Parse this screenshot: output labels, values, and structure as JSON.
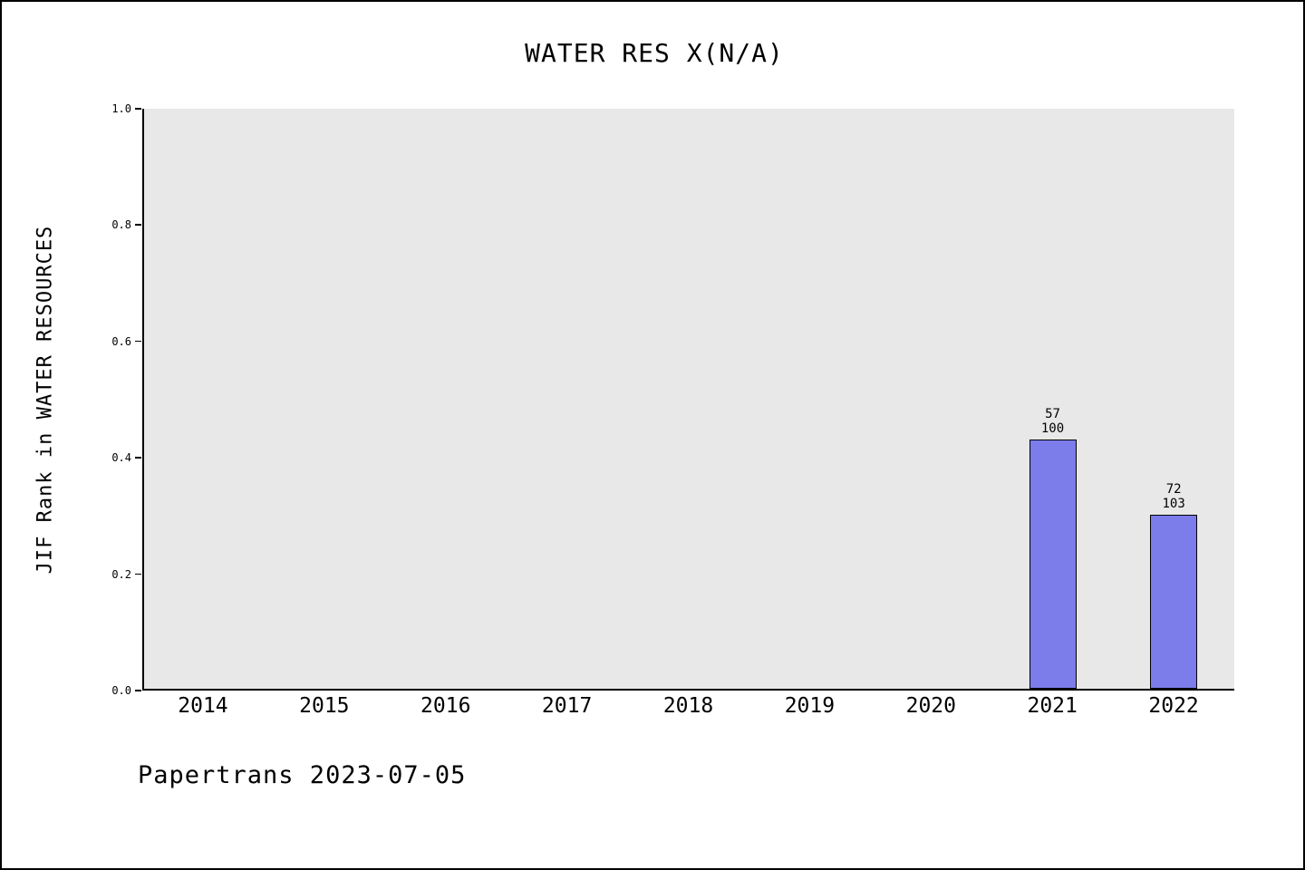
{
  "chart_data": {
    "type": "bar",
    "title": "WATER RES X(N/A)",
    "ylabel": "JIF Rank in WATER RESOURCES",
    "xlabel": "",
    "categories": [
      "2014",
      "2015",
      "2016",
      "2017",
      "2018",
      "2019",
      "2020",
      "2021",
      "2022"
    ],
    "ylim": [
      0.0,
      1.0
    ],
    "yticks": [
      "0.0",
      "0.2",
      "0.4",
      "0.6",
      "0.8",
      "1.0"
    ],
    "grid": false,
    "legend": "none",
    "plot_bg": "#e8e8e8",
    "bar_color": "#7c7ceb",
    "bar_border_color": "#000000",
    "bars": [
      {
        "category": "2021",
        "value": 0.43,
        "label_lines": [
          "57",
          "100"
        ]
      },
      {
        "category": "2022",
        "value": 0.3,
        "label_lines": [
          "72",
          "103"
        ]
      }
    ]
  },
  "footer": {
    "text": "Papertrans 2023-07-05"
  }
}
